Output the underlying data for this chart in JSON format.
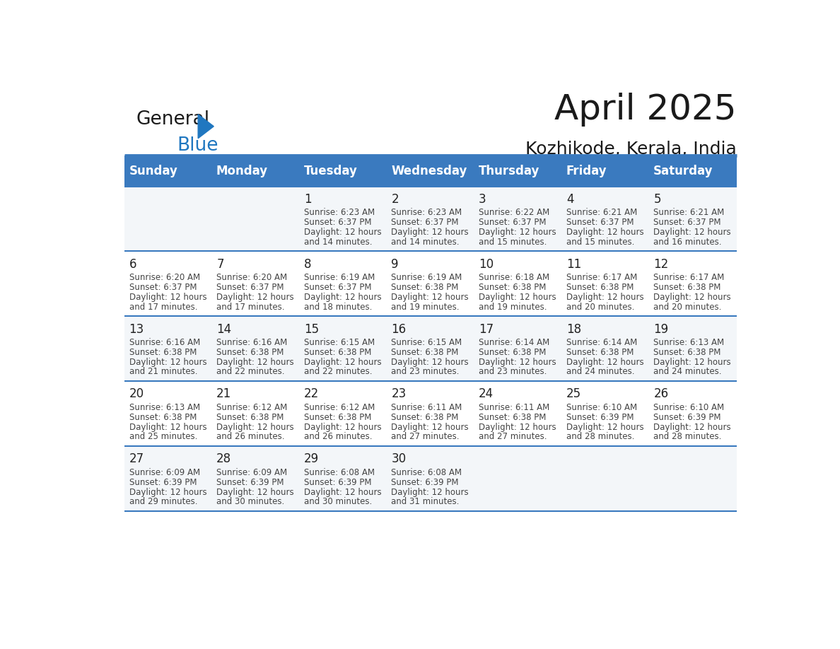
{
  "title": "April 2025",
  "subtitle": "Kozhikode, Kerala, India",
  "header_bg_color": "#3a7abf",
  "header_text_color": "#ffffff",
  "border_color": "#3a7abf",
  "days_of_week": [
    "Sunday",
    "Monday",
    "Tuesday",
    "Wednesday",
    "Thursday",
    "Friday",
    "Saturday"
  ],
  "weeks": [
    [
      {
        "day": null,
        "sunrise": null,
        "sunset": null,
        "daylight": null
      },
      {
        "day": null,
        "sunrise": null,
        "sunset": null,
        "daylight": null
      },
      {
        "day": 1,
        "sunrise": "6:23 AM",
        "sunset": "6:37 PM",
        "daylight": "12 hours and 14 minutes"
      },
      {
        "day": 2,
        "sunrise": "6:23 AM",
        "sunset": "6:37 PM",
        "daylight": "12 hours and 14 minutes"
      },
      {
        "day": 3,
        "sunrise": "6:22 AM",
        "sunset": "6:37 PM",
        "daylight": "12 hours and 15 minutes"
      },
      {
        "day": 4,
        "sunrise": "6:21 AM",
        "sunset": "6:37 PM",
        "daylight": "12 hours and 15 minutes"
      },
      {
        "day": 5,
        "sunrise": "6:21 AM",
        "sunset": "6:37 PM",
        "daylight": "12 hours and 16 minutes"
      }
    ],
    [
      {
        "day": 6,
        "sunrise": "6:20 AM",
        "sunset": "6:37 PM",
        "daylight": "12 hours and 17 minutes"
      },
      {
        "day": 7,
        "sunrise": "6:20 AM",
        "sunset": "6:37 PM",
        "daylight": "12 hours and 17 minutes"
      },
      {
        "day": 8,
        "sunrise": "6:19 AM",
        "sunset": "6:37 PM",
        "daylight": "12 hours and 18 minutes"
      },
      {
        "day": 9,
        "sunrise": "6:19 AM",
        "sunset": "6:38 PM",
        "daylight": "12 hours and 19 minutes"
      },
      {
        "day": 10,
        "sunrise": "6:18 AM",
        "sunset": "6:38 PM",
        "daylight": "12 hours and 19 minutes"
      },
      {
        "day": 11,
        "sunrise": "6:17 AM",
        "sunset": "6:38 PM",
        "daylight": "12 hours and 20 minutes"
      },
      {
        "day": 12,
        "sunrise": "6:17 AM",
        "sunset": "6:38 PM",
        "daylight": "12 hours and 20 minutes"
      }
    ],
    [
      {
        "day": 13,
        "sunrise": "6:16 AM",
        "sunset": "6:38 PM",
        "daylight": "12 hours and 21 minutes"
      },
      {
        "day": 14,
        "sunrise": "6:16 AM",
        "sunset": "6:38 PM",
        "daylight": "12 hours and 22 minutes"
      },
      {
        "day": 15,
        "sunrise": "6:15 AM",
        "sunset": "6:38 PM",
        "daylight": "12 hours and 22 minutes"
      },
      {
        "day": 16,
        "sunrise": "6:15 AM",
        "sunset": "6:38 PM",
        "daylight": "12 hours and 23 minutes"
      },
      {
        "day": 17,
        "sunrise": "6:14 AM",
        "sunset": "6:38 PM",
        "daylight": "12 hours and 23 minutes"
      },
      {
        "day": 18,
        "sunrise": "6:14 AM",
        "sunset": "6:38 PM",
        "daylight": "12 hours and 24 minutes"
      },
      {
        "day": 19,
        "sunrise": "6:13 AM",
        "sunset": "6:38 PM",
        "daylight": "12 hours and 24 minutes"
      }
    ],
    [
      {
        "day": 20,
        "sunrise": "6:13 AM",
        "sunset": "6:38 PM",
        "daylight": "12 hours and 25 minutes"
      },
      {
        "day": 21,
        "sunrise": "6:12 AM",
        "sunset": "6:38 PM",
        "daylight": "12 hours and 26 minutes"
      },
      {
        "day": 22,
        "sunrise": "6:12 AM",
        "sunset": "6:38 PM",
        "daylight": "12 hours and 26 minutes"
      },
      {
        "day": 23,
        "sunrise": "6:11 AM",
        "sunset": "6:38 PM",
        "daylight": "12 hours and 27 minutes"
      },
      {
        "day": 24,
        "sunrise": "6:11 AM",
        "sunset": "6:38 PM",
        "daylight": "12 hours and 27 minutes"
      },
      {
        "day": 25,
        "sunrise": "6:10 AM",
        "sunset": "6:39 PM",
        "daylight": "12 hours and 28 minutes"
      },
      {
        "day": 26,
        "sunrise": "6:10 AM",
        "sunset": "6:39 PM",
        "daylight": "12 hours and 28 minutes"
      }
    ],
    [
      {
        "day": 27,
        "sunrise": "6:09 AM",
        "sunset": "6:39 PM",
        "daylight": "12 hours and 29 minutes"
      },
      {
        "day": 28,
        "sunrise": "6:09 AM",
        "sunset": "6:39 PM",
        "daylight": "12 hours and 30 minutes"
      },
      {
        "day": 29,
        "sunrise": "6:08 AM",
        "sunset": "6:39 PM",
        "daylight": "12 hours and 30 minutes"
      },
      {
        "day": 30,
        "sunrise": "6:08 AM",
        "sunset": "6:39 PM",
        "daylight": "12 hours and 31 minutes"
      },
      {
        "day": null,
        "sunrise": null,
        "sunset": null,
        "daylight": null
      },
      {
        "day": null,
        "sunrise": null,
        "sunset": null,
        "daylight": null
      },
      {
        "day": null,
        "sunrise": null,
        "sunset": null,
        "daylight": null
      }
    ]
  ],
  "logo_text1": "General",
  "logo_text2": "Blue",
  "logo_text_color1": "#1a1a1a",
  "logo_text_color2": "#2077c0",
  "logo_triangle_color": "#2077c0"
}
